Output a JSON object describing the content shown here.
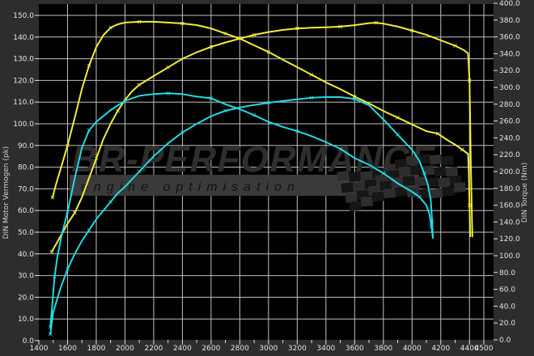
{
  "chart_data": {
    "type": "line",
    "title": "",
    "grid": true,
    "legend": "none",
    "background": "#000000",
    "outer_background": "#2d2d2d",
    "grid_color": "#c0c0c0",
    "x_axis": {
      "label": "",
      "min": 1400,
      "max": 4500,
      "tick_labels": [
        1400,
        1600,
        1800,
        2000,
        2200,
        2400,
        2600,
        2800,
        3000,
        3200,
        3400,
        3600,
        3800,
        4000,
        4200,
        4400,
        4500
      ],
      "minor_tick_step": 100,
      "unit": "rpm"
    },
    "y_left": {
      "label": "DIN Motor Vermogen (pk)",
      "min": 0,
      "max": 150,
      "step": 10
    },
    "y_right": {
      "label": "DIN Torque (Nm)",
      "min": 0,
      "max": 400,
      "step": 20
    },
    "series": [
      {
        "name": "tuned-power",
        "axis": "left",
        "color": "#f1ee38",
        "unit": "pk",
        "points": [
          [
            1490,
            41
          ],
          [
            1550,
            48
          ],
          [
            1600,
            54
          ],
          [
            1650,
            59
          ],
          [
            1700,
            66
          ],
          [
            1750,
            75
          ],
          [
            1800,
            84
          ],
          [
            1850,
            93
          ],
          [
            1900,
            100
          ],
          [
            1950,
            106
          ],
          [
            2000,
            111
          ],
          [
            2050,
            115
          ],
          [
            2100,
            118
          ],
          [
            2150,
            120
          ],
          [
            2200,
            122
          ],
          [
            2300,
            126
          ],
          [
            2400,
            130
          ],
          [
            2500,
            133
          ],
          [
            2600,
            135.5
          ],
          [
            2700,
            137.5
          ],
          [
            2800,
            139.3
          ],
          [
            2900,
            141
          ],
          [
            3000,
            142.3
          ],
          [
            3100,
            143.3
          ],
          [
            3200,
            144
          ],
          [
            3300,
            144.3
          ],
          [
            3400,
            144.5
          ],
          [
            3500,
            144.8
          ],
          [
            3600,
            145.5
          ],
          [
            3700,
            146.4
          ],
          [
            3750,
            146.6
          ],
          [
            3800,
            146.2
          ],
          [
            3900,
            144.8
          ],
          [
            4000,
            143
          ],
          [
            4100,
            141
          ],
          [
            4200,
            138.5
          ],
          [
            4300,
            136
          ],
          [
            4360,
            134
          ],
          [
            4390,
            132.5
          ],
          [
            4400,
            120
          ],
          [
            4410,
            80
          ],
          [
            4420,
            48
          ]
        ]
      },
      {
        "name": "tuned-torque",
        "axis": "right",
        "color": "#f1ee38",
        "unit": "Nm",
        "points": [
          [
            1495,
            169
          ],
          [
            1520,
            185
          ],
          [
            1550,
            202
          ],
          [
            1600,
            231
          ],
          [
            1650,
            264
          ],
          [
            1700,
            298
          ],
          [
            1750,
            326
          ],
          [
            1800,
            348
          ],
          [
            1850,
            362
          ],
          [
            1900,
            371
          ],
          [
            1950,
            375
          ],
          [
            2000,
            377
          ],
          [
            2100,
            378
          ],
          [
            2200,
            378
          ],
          [
            2300,
            377
          ],
          [
            2400,
            376
          ],
          [
            2500,
            374
          ],
          [
            2600,
            370
          ],
          [
            2700,
            364
          ],
          [
            2800,
            358
          ],
          [
            2900,
            350
          ],
          [
            3000,
            342
          ],
          [
            3100,
            333
          ],
          [
            3200,
            324
          ],
          [
            3300,
            315
          ],
          [
            3400,
            306
          ],
          [
            3500,
            298
          ],
          [
            3600,
            289
          ],
          [
            3700,
            281
          ],
          [
            3800,
            272
          ],
          [
            3900,
            264
          ],
          [
            4000,
            256
          ],
          [
            4100,
            248
          ],
          [
            4180,
            245
          ],
          [
            4250,
            237
          ],
          [
            4300,
            232
          ],
          [
            4350,
            226
          ],
          [
            4390,
            221
          ],
          [
            4395,
            200
          ],
          [
            4400,
            160
          ],
          [
            4405,
            123
          ]
        ]
      },
      {
        "name": "stock-power",
        "axis": "left",
        "color": "#1fdce2",
        "unit": "pk",
        "points": [
          [
            1480,
            3
          ],
          [
            1500,
            13
          ],
          [
            1550,
            24
          ],
          [
            1600,
            33
          ],
          [
            1650,
            40
          ],
          [
            1700,
            46
          ],
          [
            1750,
            51
          ],
          [
            1800,
            56
          ],
          [
            1850,
            60
          ],
          [
            1900,
            64
          ],
          [
            1950,
            68
          ],
          [
            2000,
            71
          ],
          [
            2100,
            78
          ],
          [
            2200,
            85
          ],
          [
            2300,
            91
          ],
          [
            2400,
            96
          ],
          [
            2500,
            100
          ],
          [
            2600,
            103.5
          ],
          [
            2700,
            106
          ],
          [
            2800,
            107.5
          ],
          [
            2900,
            108.7
          ],
          [
            3000,
            109.7
          ],
          [
            3100,
            110.5
          ],
          [
            3200,
            111.3
          ],
          [
            3300,
            112
          ],
          [
            3400,
            112.3
          ],
          [
            3500,
            112.3
          ],
          [
            3600,
            111.5
          ],
          [
            3700,
            108.5
          ],
          [
            3800,
            102
          ],
          [
            3900,
            95
          ],
          [
            4000,
            88
          ],
          [
            4050,
            83
          ],
          [
            4085,
            77
          ],
          [
            4110,
            72
          ],
          [
            4130,
            65
          ],
          [
            4140,
            55
          ],
          [
            4145,
            48
          ]
        ]
      },
      {
        "name": "stock-torque",
        "axis": "right",
        "color": "#1fdce2",
        "unit": "Nm",
        "points": [
          [
            1480,
            15
          ],
          [
            1490,
            35
          ],
          [
            1500,
            55
          ],
          [
            1510,
            75
          ],
          [
            1530,
            100
          ],
          [
            1560,
            125
          ],
          [
            1600,
            152
          ],
          [
            1650,
            192
          ],
          [
            1700,
            228
          ],
          [
            1750,
            249
          ],
          [
            1800,
            259
          ],
          [
            1900,
            273
          ],
          [
            2000,
            284
          ],
          [
            2100,
            290
          ],
          [
            2200,
            292
          ],
          [
            2300,
            293
          ],
          [
            2400,
            292
          ],
          [
            2500,
            289
          ],
          [
            2600,
            287
          ],
          [
            2700,
            280
          ],
          [
            2800,
            274
          ],
          [
            2900,
            267
          ],
          [
            3000,
            259
          ],
          [
            3100,
            253
          ],
          [
            3200,
            248
          ],
          [
            3300,
            242
          ],
          [
            3400,
            235
          ],
          [
            3500,
            227
          ],
          [
            3600,
            216
          ],
          [
            3700,
            208
          ],
          [
            3800,
            198
          ],
          [
            3900,
            186
          ],
          [
            4000,
            176
          ],
          [
            4050,
            170
          ],
          [
            4100,
            160
          ],
          [
            4120,
            150
          ],
          [
            4135,
            135
          ],
          [
            4145,
            121
          ]
        ]
      }
    ],
    "watermark": {
      "line1": "BR-PERFORMANCE",
      "line2": "engine optimisation",
      "title_color": "#2e2e2e",
      "band_color": "#3a3a3a",
      "band_text_color": "#121212",
      "checker_dark": "#161616",
      "checker_light": "#2e2e2e"
    }
  }
}
